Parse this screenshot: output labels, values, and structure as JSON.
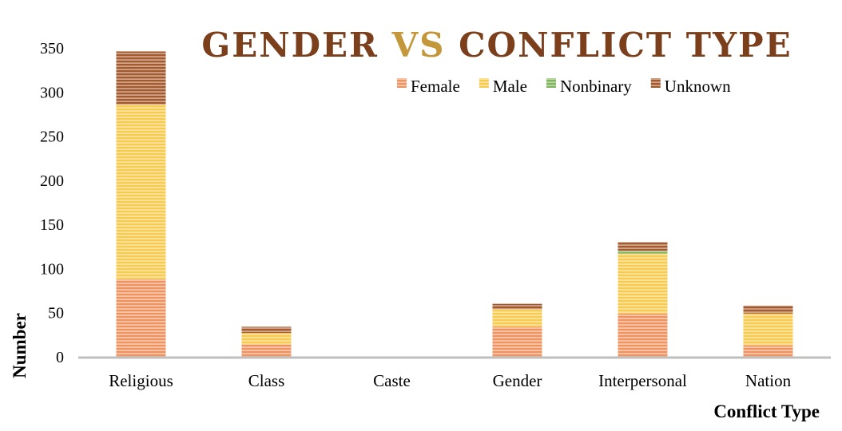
{
  "chart_data": {
    "type": "bar",
    "stacked": true,
    "title": {
      "part1": "GENDER ",
      "part2": "VS",
      "part3": " CONFLICT TYPE"
    },
    "xlabel": "Conflict Type",
    "ylabel": "Number",
    "ylim": [
      0,
      350
    ],
    "yticks": [
      0,
      50,
      100,
      150,
      200,
      250,
      300,
      350
    ],
    "grid": false,
    "legend_position": "top-right",
    "categories": [
      "Religious",
      "Class",
      "Caste",
      "Gender",
      "Interpersonal",
      "Nation"
    ],
    "series": [
      {
        "name": "Female",
        "color": "#ee9460",
        "values": [
          88,
          14,
          0,
          34,
          49,
          13
        ]
      },
      {
        "name": "Male",
        "color": "#f6cb4e",
        "values": [
          198,
          13,
          0,
          20,
          68,
          36
        ]
      },
      {
        "name": "Nonbinary",
        "color": "#7fb55c",
        "values": [
          0,
          0,
          0,
          0,
          3,
          0
        ]
      },
      {
        "name": "Unknown",
        "color": "#a55a2e",
        "values": [
          60,
          7,
          0,
          6,
          10,
          9
        ]
      }
    ],
    "title_colors": {
      "main": "#7b3f1c",
      "accent": "#c3973a"
    }
  }
}
